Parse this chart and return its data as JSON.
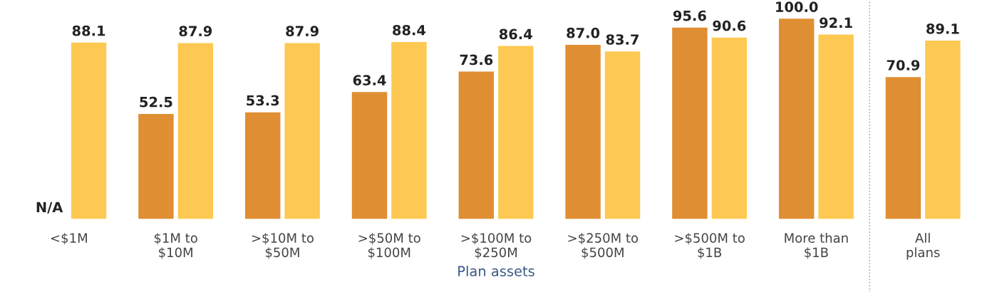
{
  "chart_data": {
    "type": "bar",
    "xlabel": "Plan assets",
    "categories": [
      "<$1M",
      "$1M to\n$10M",
      ">$10M to\n$50M",
      ">$50M to\n$100M",
      ">$100M to\n$250M",
      ">$250M to\n$500M",
      ">$500M to\n$1B",
      "More than\n$1B",
      "All\nplans"
    ],
    "series": [
      {
        "color": "#e08e33",
        "values": [
          null,
          52.5,
          53.3,
          63.4,
          73.6,
          87.0,
          95.6,
          100.0,
          70.9
        ],
        "value_labels": [
          "N/A",
          "52.5",
          "53.3",
          "63.4",
          "73.6",
          "87.0",
          "95.6",
          "100.0",
          "70.9"
        ]
      },
      {
        "color": "#fdc953",
        "values": [
          88.1,
          87.9,
          87.9,
          88.4,
          86.4,
          83.7,
          90.6,
          92.1,
          89.1
        ],
        "value_labels": [
          "88.1",
          "87.9",
          "87.9",
          "88.4",
          "86.4",
          "83.7",
          "90.6",
          "92.1",
          "89.1"
        ]
      }
    ],
    "tick_labels": "x",
    "grid": false,
    "legend": false
  }
}
